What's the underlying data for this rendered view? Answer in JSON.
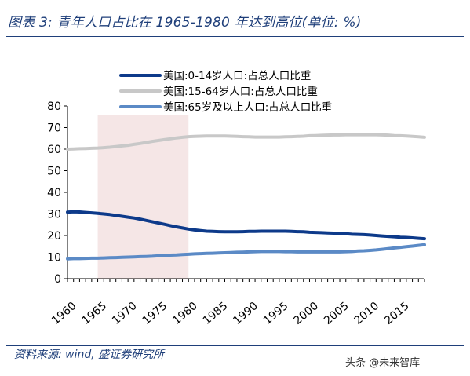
{
  "header": {
    "title": "图表 3:  青年人口占比在 1965-1980 年达到高位(单位: %)"
  },
  "footer": {
    "source": "资料来源: wind, 盛证券研究所",
    "watermark": "头条 @未来智库"
  },
  "colors": {
    "brand_blue": "#1f3f7a",
    "series_0_14": "#0d3a8a",
    "series_15_64": "#c8c8c8",
    "series_65": "#5b8ac6",
    "highlight_band": "#f5e6e6"
  },
  "chart_data": {
    "type": "line",
    "title": "",
    "xlabel": "",
    "ylabel": "",
    "ylim": [
      0,
      80
    ],
    "yticks": [
      0,
      10,
      20,
      30,
      40,
      50,
      60,
      70,
      80
    ],
    "xlim": [
      1960,
      2019
    ],
    "xticks": [
      1960,
      1965,
      1970,
      1975,
      1980,
      1985,
      1990,
      1995,
      2000,
      2005,
      2010,
      2015
    ],
    "highlight_range": [
      1965,
      1980
    ],
    "legend_position": "top",
    "grid": false,
    "x": [
      1960,
      1961,
      1962,
      1963,
      1964,
      1965,
      1966,
      1967,
      1968,
      1969,
      1970,
      1971,
      1972,
      1973,
      1974,
      1975,
      1976,
      1977,
      1978,
      1979,
      1980,
      1981,
      1982,
      1983,
      1984,
      1985,
      1986,
      1987,
      1988,
      1989,
      1990,
      1991,
      1992,
      1993,
      1994,
      1995,
      1996,
      1997,
      1998,
      1999,
      2000,
      2001,
      2002,
      2003,
      2004,
      2005,
      2006,
      2007,
      2008,
      2009,
      2010,
      2011,
      2012,
      2013,
      2014,
      2015,
      2016,
      2017,
      2018,
      2019
    ],
    "series": [
      {
        "name": "美国:0-14岁人口:占总人口比重",
        "color": "#0d3a8a",
        "values": [
          30.8,
          31.0,
          30.9,
          30.7,
          30.5,
          30.3,
          30.0,
          29.7,
          29.3,
          28.9,
          28.5,
          28.1,
          27.6,
          27.0,
          26.4,
          25.8,
          25.2,
          24.6,
          24.0,
          23.5,
          23.0,
          22.6,
          22.3,
          22.0,
          21.9,
          21.8,
          21.7,
          21.7,
          21.7,
          21.8,
          21.9,
          21.9,
          22.0,
          22.0,
          22.0,
          22.0,
          22.0,
          21.9,
          21.8,
          21.7,
          21.5,
          21.4,
          21.3,
          21.2,
          21.1,
          20.9,
          20.8,
          20.6,
          20.5,
          20.4,
          20.2,
          20.0,
          19.8,
          19.6,
          19.4,
          19.2,
          19.1,
          18.9,
          18.7,
          18.5
        ]
      },
      {
        "name": "美国:15-64岁人口:占总人口比重",
        "color": "#c8c8c8",
        "values": [
          60.0,
          60.1,
          60.2,
          60.3,
          60.4,
          60.5,
          60.7,
          60.9,
          61.2,
          61.5,
          61.8,
          62.2,
          62.6,
          63.1,
          63.6,
          64.0,
          64.4,
          64.8,
          65.2,
          65.5,
          65.8,
          65.9,
          66.0,
          66.1,
          66.1,
          66.1,
          66.1,
          66.0,
          65.9,
          65.8,
          65.7,
          65.6,
          65.6,
          65.6,
          65.6,
          65.6,
          65.7,
          65.8,
          65.9,
          66.0,
          66.2,
          66.3,
          66.4,
          66.5,
          66.6,
          66.6,
          66.7,
          66.7,
          66.7,
          66.7,
          66.7,
          66.7,
          66.6,
          66.5,
          66.3,
          66.2,
          66.1,
          65.9,
          65.7,
          65.5
        ]
      },
      {
        "name": "美国:65岁及以上人口:占总人口比重",
        "color": "#5b8ac6",
        "values": [
          9.2,
          9.3,
          9.3,
          9.4,
          9.5,
          9.5,
          9.6,
          9.7,
          9.8,
          9.9,
          10.0,
          10.1,
          10.2,
          10.3,
          10.4,
          10.6,
          10.7,
          10.9,
          11.0,
          11.2,
          11.3,
          11.5,
          11.6,
          11.7,
          11.8,
          11.9,
          12.0,
          12.1,
          12.2,
          12.3,
          12.4,
          12.5,
          12.6,
          12.6,
          12.6,
          12.6,
          12.5,
          12.5,
          12.4,
          12.4,
          12.4,
          12.4,
          12.4,
          12.4,
          12.4,
          12.4,
          12.5,
          12.6,
          12.8,
          12.9,
          13.1,
          13.3,
          13.6,
          13.9,
          14.2,
          14.5,
          14.8,
          15.1,
          15.4,
          15.7
        ]
      }
    ]
  }
}
